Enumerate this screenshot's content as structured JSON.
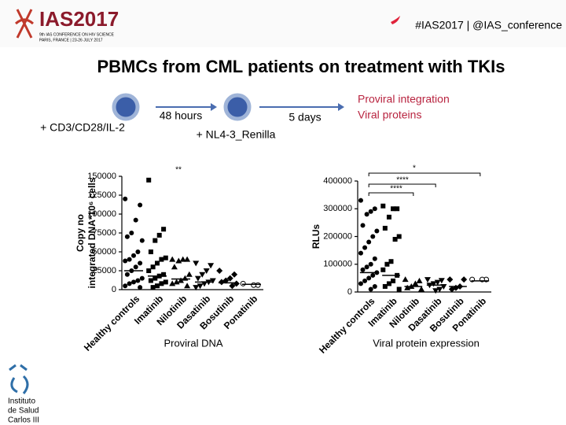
{
  "header": {
    "logo": "IAS2017",
    "logo_line1": "9th IAS CONFERENCE ON HIV SCIENCE",
    "logo_line2": "PARIS, FRANCE | 23-26 JULY 2017",
    "hashtag": "#IAS2017 | @IAS_conference"
  },
  "title": "PBMCs from CML patients on treatment with TKIs",
  "diagram": {
    "stimulus": "+ CD3/CD28/IL-2",
    "time1": "48 hours",
    "infection": "+ NL4-3_Renilla",
    "time2": "5 days",
    "readout1": "Proviral integration",
    "readout2": "Viral proteins"
  },
  "footer": {
    "logo_lines": [
      "Instituto",
      "de Salud",
      "Carlos III"
    ]
  },
  "chart_data": [
    {
      "type": "strip",
      "ylabel": [
        "Copy no",
        "integrated DNA*10⁶ cells"
      ],
      "caption": "Proviral DNA",
      "categories": [
        "Healthy controls",
        "Imatinib",
        "Nilotinib",
        "Dasatinib",
        "Bosutinib",
        "Ponatinib"
      ],
      "markers": [
        "circle",
        "square",
        "triangle",
        "triangle-down",
        "diamond",
        "circle-open"
      ],
      "ylim": [
        0,
        150000
      ],
      "yticks": [
        0,
        25000,
        50000,
        75000,
        100000,
        125000,
        150000
      ],
      "points": [
        [
          120000,
          112000,
          92000,
          75000,
          70000,
          65000,
          50000,
          45000,
          40000,
          38000,
          35000,
          30000,
          25000,
          20000,
          15000,
          12000,
          10000,
          8000,
          5000,
          3000
        ],
        [
          145000,
          80000,
          72000,
          65000,
          50000,
          42000,
          40000,
          35000,
          30000,
          25000,
          20000,
          18000,
          15000,
          12000,
          10000,
          8000,
          5000,
          3000
        ],
        [
          40000,
          40000,
          40000,
          38000,
          30000,
          20000,
          15000,
          12000,
          10000,
          8000,
          5000
        ],
        [
          35000,
          32000,
          25000,
          20000,
          15000,
          12000,
          10000,
          8000,
          5000,
          3000
        ],
        [
          25000,
          20000,
          15000,
          12000,
          10000,
          8000,
          5000
        ],
        [
          8000,
          6000,
          6000
        ]
      ],
      "means": [
        25000,
        18000,
        14000,
        10000,
        9000,
        7000
      ],
      "annotations": [
        "**"
      ]
    },
    {
      "type": "strip",
      "ylabel": [
        "RLUs"
      ],
      "caption": "Viral protein expression",
      "categories": [
        "Healthy controls",
        "Imatinib",
        "Nilotinib",
        "Dasatinib",
        "Bosutinib",
        "Ponatinib"
      ],
      "markers": [
        "circle",
        "square",
        "triangle",
        "triangle-down",
        "diamond",
        "circle-open"
      ],
      "ylim": [
        0,
        400000
      ],
      "yticks": [
        0,
        100000,
        200000,
        300000,
        400000
      ],
      "points": [
        [
          330000,
          300000,
          290000,
          280000,
          240000,
          220000,
          200000,
          180000,
          160000,
          140000,
          120000,
          100000,
          90000,
          80000,
          70000,
          60000,
          50000,
          40000,
          30000,
          20000,
          10000
        ],
        [
          310000,
          300000,
          300000,
          270000,
          230000,
          200000,
          190000,
          110000,
          100000,
          80000,
          60000,
          40000,
          30000,
          20000,
          10000
        ],
        [
          45000,
          40000,
          30000,
          20000,
          15000,
          10000
        ],
        [
          45000,
          42000,
          35000,
          30000,
          25000,
          20000,
          10000,
          5000
        ],
        [
          45000,
          45000,
          20000,
          15000,
          10000
        ],
        [
          45000,
          45000,
          45000
        ]
      ],
      "means": [
        70000,
        60000,
        20000,
        25000,
        20000,
        40000
      ],
      "annotations": [
        "*",
        "****",
        "****"
      ]
    }
  ]
}
